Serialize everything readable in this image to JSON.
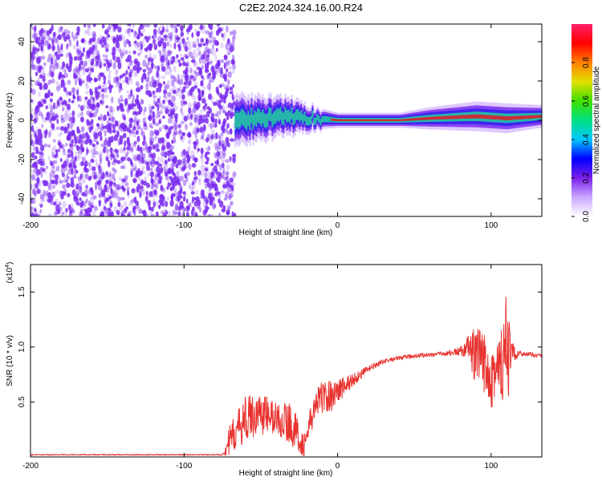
{
  "title": "C2E2.2024.324.16.00.R24",
  "colors": {
    "snr_line": "#e8332f",
    "speckle": "#7b2cf0",
    "band_core": "#e02020",
    "band_mid": "#20c8a0",
    "band_edge": "#3020f0"
  },
  "chart_data": [
    {
      "type": "heatmap",
      "xlabel": "Height of straight line (km)",
      "ylabel": "Frequency (Hz)",
      "xlim": [
        -200,
        133
      ],
      "ylim": [
        -49,
        49
      ],
      "x_ticks": [
        -200,
        -100,
        0,
        100
      ],
      "y_ticks": [
        -40,
        -20,
        0,
        20,
        40
      ],
      "colorbar": {
        "label": "Normalized spectral amplitude",
        "range": [
          0.0,
          1.0
        ],
        "ticks": [
          0.0,
          0.2,
          0.4,
          0.6,
          0.8
        ],
        "colors": [
          "#ffffff",
          "#c9a8ff",
          "#7a1fe8",
          "#0000ff",
          "#00c8ff",
          "#00e080",
          "#40e000",
          "#e0e000",
          "#ff8000",
          "#ff0000",
          "#ff2068"
        ]
      },
      "noise_region_x": [
        -200,
        -67
      ],
      "band": [
        {
          "x": -67,
          "center": 0,
          "halfwidth": 7,
          "peak": 0.5
        },
        {
          "x": -50,
          "center": 1,
          "halfwidth": 6,
          "peak": 0.5
        },
        {
          "x": -30,
          "center": 2,
          "halfwidth": 5,
          "peak": 0.55
        },
        {
          "x": -15,
          "center": 1,
          "halfwidth": 3,
          "peak": 0.6
        },
        {
          "x": 0,
          "center": 0,
          "halfwidth": 2,
          "peak": 0.9
        },
        {
          "x": 40,
          "center": 0,
          "halfwidth": 2,
          "peak": 0.9
        },
        {
          "x": 60,
          "center": 1,
          "halfwidth": 3,
          "peak": 0.75
        },
        {
          "x": 90,
          "center": 2,
          "halfwidth": 4,
          "peak": 0.85
        },
        {
          "x": 110,
          "center": 1,
          "halfwidth": 4,
          "peak": 0.8
        },
        {
          "x": 133,
          "center": 2,
          "halfwidth": 3,
          "peak": 0.6
        }
      ]
    },
    {
      "type": "line",
      "xlabel": "Height of straight line (km)",
      "ylabel": "SNR (10 * v/v)",
      "yscale_label": "(x10",
      "yscale_exp": "4",
      "yscale_close": ")",
      "xlim": [
        -200,
        133
      ],
      "ylim": [
        0,
        1.75
      ],
      "x_ticks": [
        -200,
        -100,
        0,
        100
      ],
      "y_ticks": [
        0.5,
        1.0,
        1.5
      ],
      "y_tick_labels": [
        "0.5",
        "1.0",
        "1.5"
      ],
      "series": [
        {
          "x": [
            -200,
            -150,
            -100,
            -75,
            -70,
            -60,
            -50,
            -40,
            -30,
            -22,
            -15,
            -10,
            -5,
            0,
            10,
            20,
            30,
            40,
            50,
            60,
            70,
            80,
            85,
            90,
            95,
            100,
            105,
            110,
            113,
            120,
            133
          ],
          "y": [
            0.02,
            0.02,
            0.02,
            0.02,
            0.15,
            0.35,
            0.4,
            0.35,
            0.3,
            0.1,
            0.45,
            0.55,
            0.55,
            0.6,
            0.7,
            0.8,
            0.87,
            0.9,
            0.92,
            0.93,
            0.94,
            0.96,
            1.0,
            0.9,
            0.85,
            0.8,
            0.75,
            0.9,
            0.95,
            0.94,
            0.92
          ],
          "spread": [
            0.005,
            0.005,
            0.005,
            0.005,
            0.15,
            0.2,
            0.2,
            0.15,
            0.2,
            0.1,
            0.15,
            0.15,
            0.15,
            0.12,
            0.06,
            0.03,
            0.02,
            0.02,
            0.02,
            0.02,
            0.02,
            0.04,
            0.1,
            0.3,
            0.3,
            0.35,
            0.4,
            0.6,
            0.1,
            0.02,
            0.02
          ]
        }
      ]
    }
  ]
}
